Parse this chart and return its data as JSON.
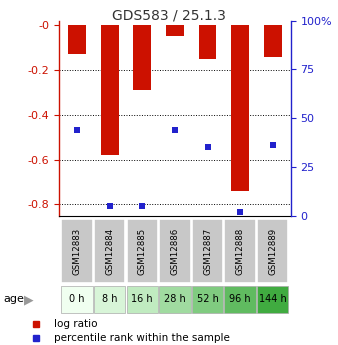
{
  "title": "GDS583 / 25.1.3",
  "samples": [
    "GSM12883",
    "GSM12884",
    "GSM12885",
    "GSM12886",
    "GSM12887",
    "GSM12888",
    "GSM12889"
  ],
  "ages": [
    "0 h",
    "8 h",
    "16 h",
    "28 h",
    "52 h",
    "96 h",
    "144 h"
  ],
  "log_ratios": [
    -0.13,
    -0.58,
    -0.29,
    -0.05,
    -0.15,
    -0.74,
    -0.14
  ],
  "percentile_ranks": [
    44,
    5,
    5,
    44,
    35,
    2,
    36
  ],
  "ylim_left": [
    -0.85,
    0.02
  ],
  "ylim_right": [
    0,
    100
  ],
  "yticks_left": [
    -0.8,
    -0.6,
    -0.4,
    -0.2,
    0.0
  ],
  "ytick_labels_left": [
    "-0.8",
    "-0.6",
    "-0.4",
    "-0.2",
    "-0"
  ],
  "yticks_right": [
    0,
    25,
    50,
    75,
    100
  ],
  "ytick_labels_right": [
    "0",
    "25",
    "50",
    "75",
    "100%"
  ],
  "bar_color": "#cc1100",
  "marker_color": "#2222cc",
  "left_tick_color": "#cc1100",
  "right_tick_color": "#2222cc",
  "age_colors": [
    "#f0fff0",
    "#d8f5d8",
    "#c0ebc0",
    "#a0dba0",
    "#80cb80",
    "#60bb60",
    "#40ab40"
  ],
  "sample_box_color": "#c8c8c8",
  "bar_width": 0.55,
  "marker_size": 4
}
